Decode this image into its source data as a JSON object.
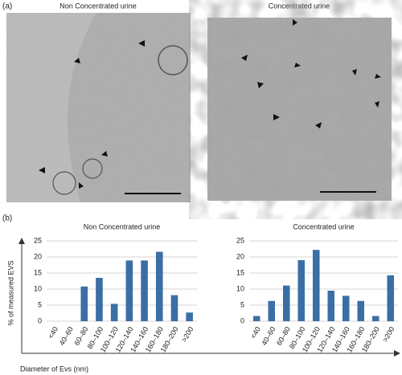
{
  "panel_labels": [
    "(a)",
    "(b)"
  ],
  "images": [
    {
      "title": "Non Concentrated urine"
    },
    {
      "title": "Concentrated urine"
    }
  ],
  "axis_labels": {
    "y": "% of measured EVS",
    "x": "Diameter of Evs (nm)"
  },
  "chart_data": [
    {
      "type": "bar",
      "title": "Non Concentrated urine",
      "categories": [
        "<40",
        "40–60",
        "60–80",
        "80–100",
        "100–120",
        "120–140",
        "140–160",
        "160–180",
        "180–200",
        ">200"
      ],
      "values": [
        0,
        0,
        10.8,
        13.5,
        5.4,
        18.9,
        18.9,
        21.6,
        8.1,
        2.7
      ],
      "color": "#3a6ea5",
      "ylim": [
        0,
        25
      ],
      "yticks": [
        0,
        5,
        10,
        15,
        20,
        25
      ],
      "grid": true
    },
    {
      "type": "bar",
      "title": "Concentrated urine",
      "categories": [
        "<40",
        "40–60",
        "60–80",
        "80–100",
        "100–120",
        "120–140",
        "140–160",
        "160–180",
        "180–200",
        ">200"
      ],
      "values": [
        1.6,
        6.3,
        11.1,
        19,
        22.2,
        9.5,
        7.9,
        6.3,
        1.6,
        14.3
      ],
      "color": "#3a6ea5",
      "ylim": [
        0,
        25
      ],
      "yticks": [
        0,
        5,
        10,
        15,
        20,
        25
      ],
      "grid": true
    }
  ]
}
